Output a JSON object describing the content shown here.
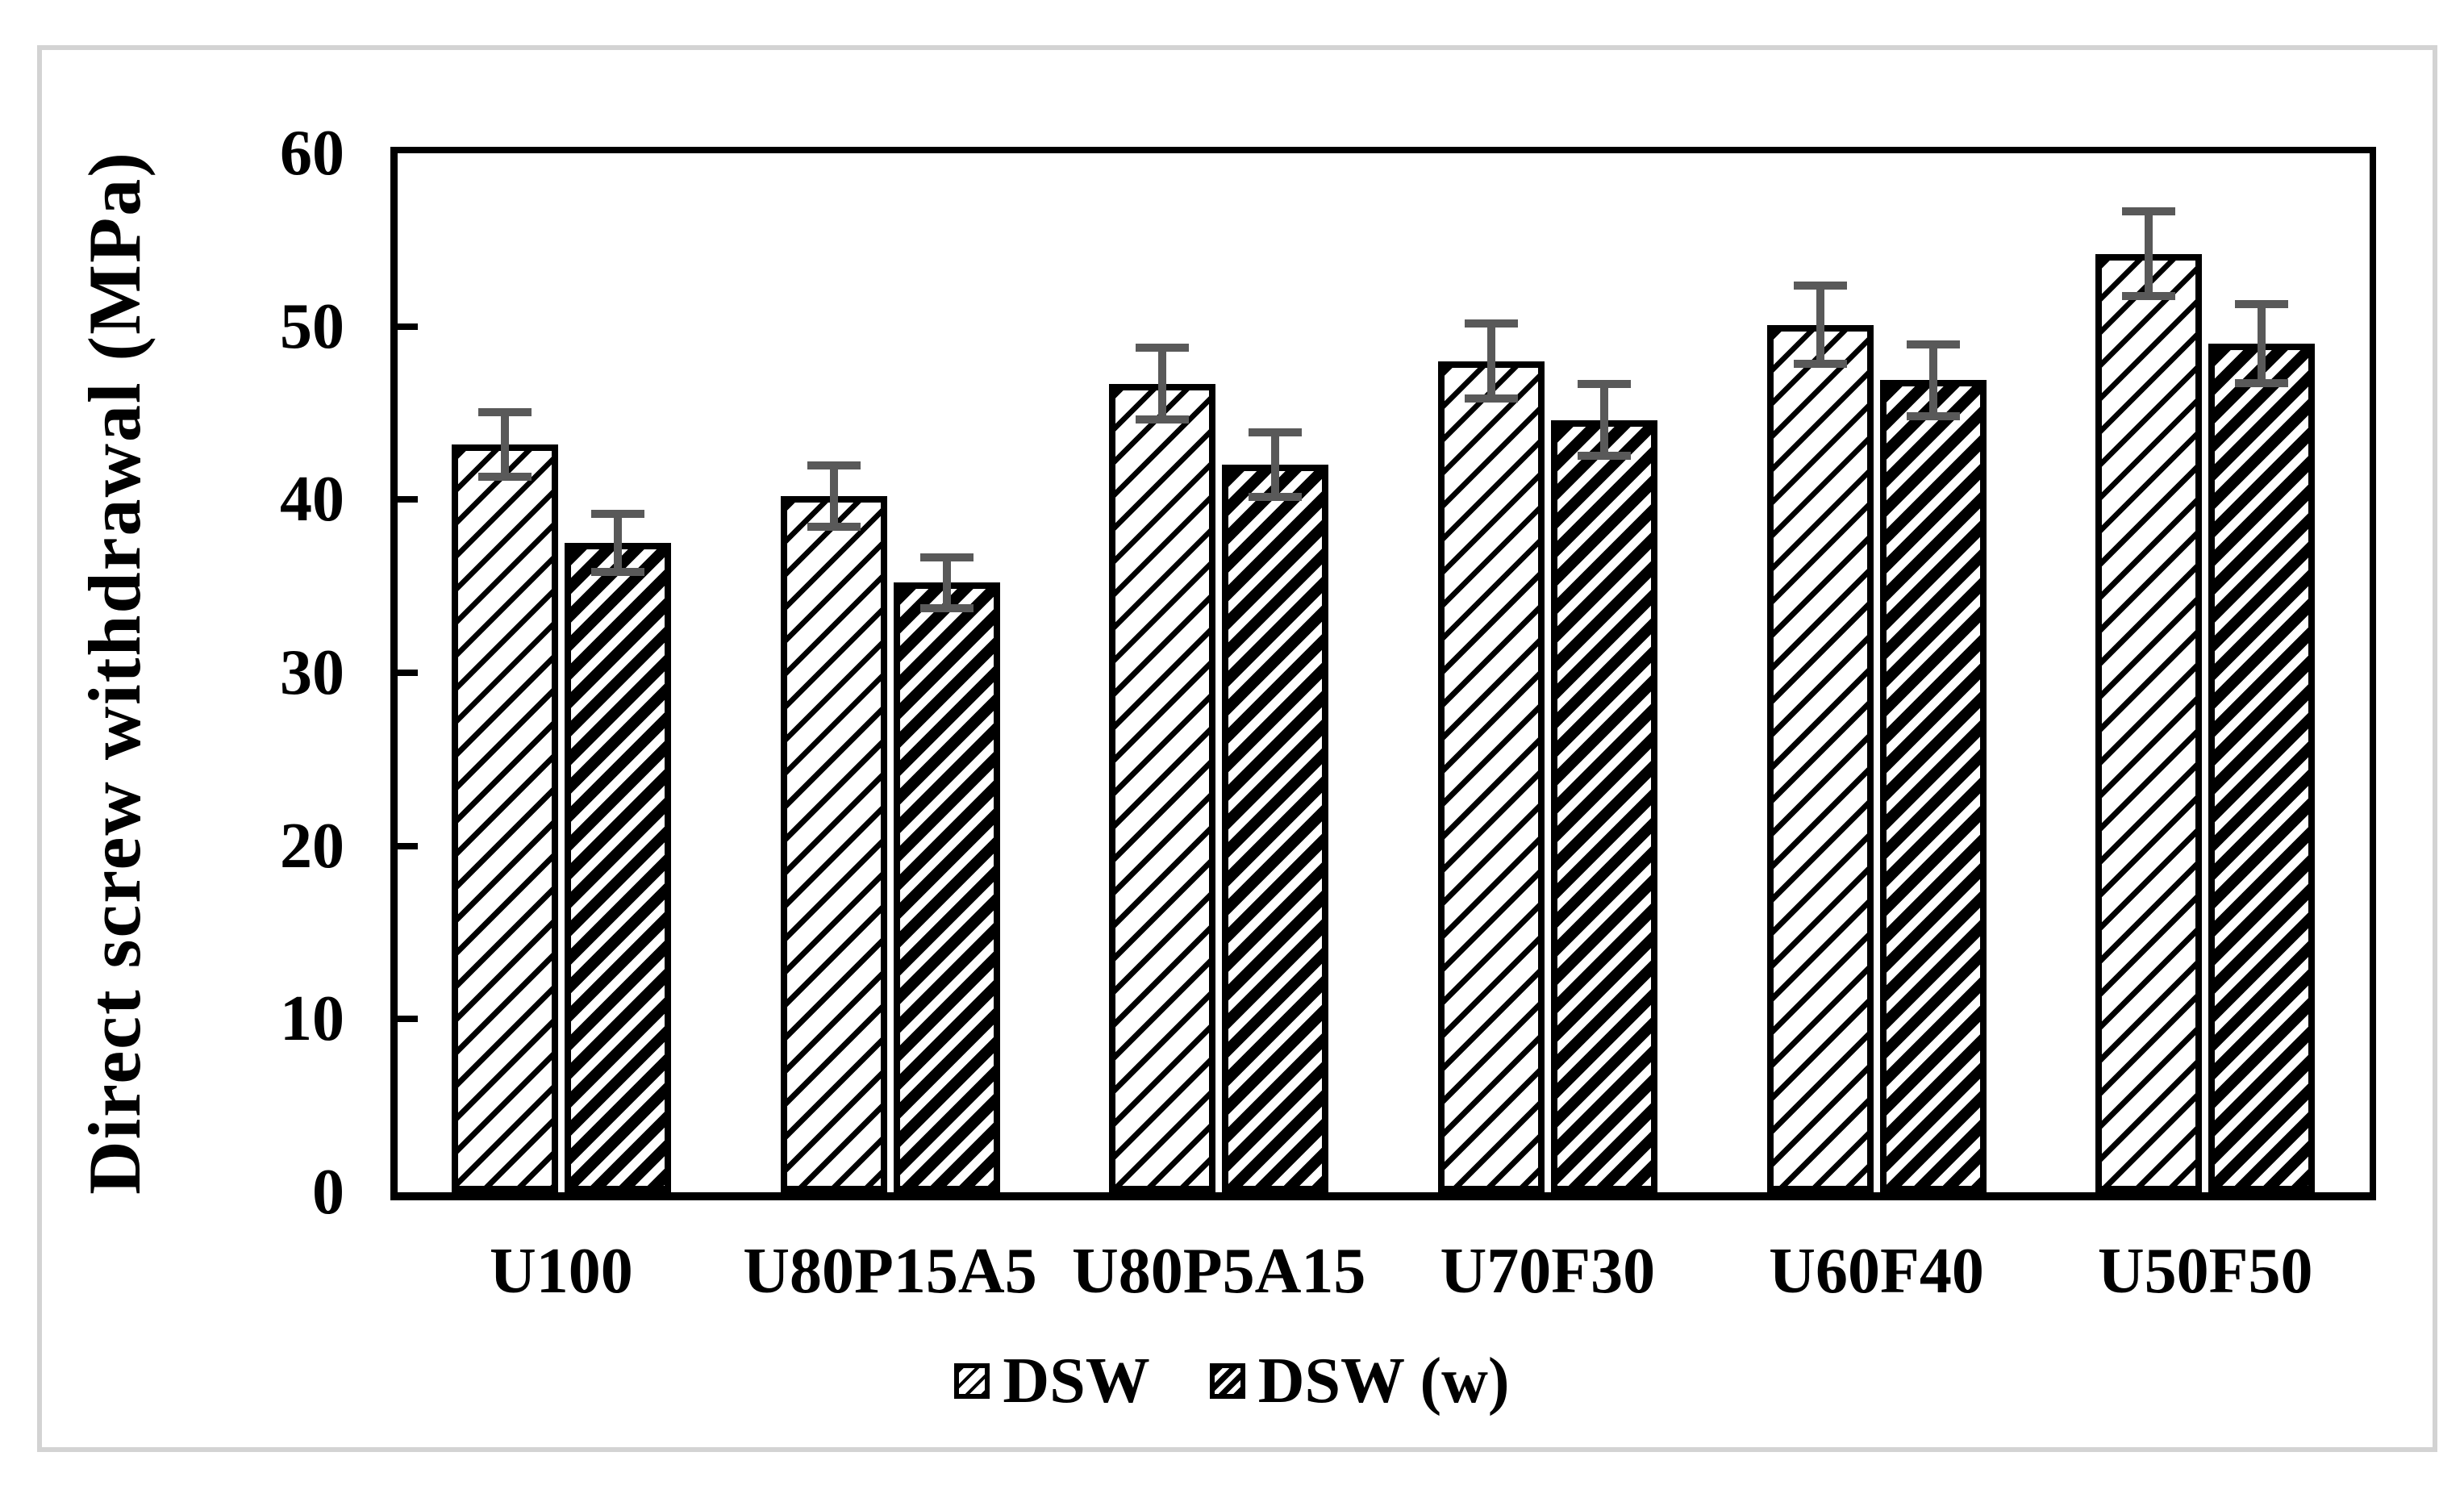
{
  "figure": {
    "frame_color": "#d3d3d3",
    "error_bar_color": "#595959",
    "bar_outline_color": "#000000",
    "background_color": "#ffffff"
  },
  "chart_data": {
    "type": "bar",
    "title": "",
    "ylabel": "Direct screw withdrawal (MPa)",
    "xlabel": "",
    "ylim": [
      0,
      60
    ],
    "yticks": [
      0,
      10,
      20,
      30,
      40,
      50,
      60
    ],
    "grid": false,
    "legend_position": "bottom",
    "bar_hatch_styles": [
      "light-upward-diagonal",
      "wide-upward-diagonal"
    ],
    "categories": [
      "U100",
      "U80P15A5",
      "U80P5A15",
      "U70F30",
      "U60F40",
      "U50F50"
    ],
    "series": [
      {
        "name": "DSW",
        "values": [
          43.2,
          40.2,
          46.7,
          48.0,
          50.1,
          54.2
        ],
        "errors": [
          2.1,
          2.0,
          2.3,
          2.4,
          2.5,
          2.7
        ]
      },
      {
        "name": "DSW (w)",
        "values": [
          37.5,
          35.2,
          42.0,
          44.6,
          46.9,
          49.0
        ],
        "errors": [
          1.9,
          1.7,
          2.1,
          2.3,
          2.3,
          2.5
        ]
      }
    ]
  }
}
